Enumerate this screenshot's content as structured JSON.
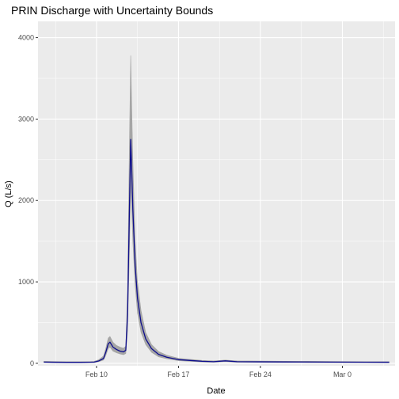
{
  "chart_data": {
    "type": "line",
    "title": "PRIN Discharge with Uncertainty Bounds",
    "xlabel": "Date",
    "ylabel": "Q (L/s)",
    "x_range_days_since_feb1": [
      5.0,
      35.5
    ],
    "ylim": [
      -30,
      4200
    ],
    "x_ticks": [
      {
        "label": "Feb 10",
        "day": 10
      },
      {
        "label": "Feb 17",
        "day": 17
      },
      {
        "label": "Feb 24",
        "day": 24
      },
      {
        "label": "Mar 0",
        "day": 31
      }
    ],
    "y_ticks": [
      0,
      1000,
      2000,
      3000,
      4000
    ],
    "grid": true,
    "colors": {
      "panel": "#ebebeb",
      "grid": "#ffffff",
      "series_line": "#0d0d8c",
      "uncertainty_band": "#a6a6a6"
    },
    "series": [
      {
        "kind": "median_discharge",
        "points": [
          [
            5.5,
            15
          ],
          [
            6.5,
            13
          ],
          [
            7.5,
            12
          ],
          [
            8.5,
            12
          ],
          [
            9.5,
            14
          ],
          [
            9.8,
            15
          ],
          [
            10.2,
            30
          ],
          [
            10.6,
            60
          ],
          [
            10.8,
            140
          ],
          [
            11.0,
            240
          ],
          [
            11.15,
            260
          ],
          [
            11.4,
            200
          ],
          [
            11.7,
            170
          ],
          [
            12.0,
            150
          ],
          [
            12.3,
            140
          ],
          [
            12.5,
            160
          ],
          [
            12.65,
            600
          ],
          [
            12.8,
            1800
          ],
          [
            12.92,
            2750
          ],
          [
            13.0,
            2400
          ],
          [
            13.1,
            1900
          ],
          [
            13.3,
            1200
          ],
          [
            13.5,
            800
          ],
          [
            13.8,
            500
          ],
          [
            14.2,
            300
          ],
          [
            14.7,
            180
          ],
          [
            15.3,
            110
          ],
          [
            16.0,
            75
          ],
          [
            17.0,
            45
          ],
          [
            18.0,
            35
          ],
          [
            19.0,
            25
          ],
          [
            20.0,
            20
          ],
          [
            21.0,
            30
          ],
          [
            22.0,
            20
          ],
          [
            24.0,
            18
          ],
          [
            26.0,
            17
          ],
          [
            28.0,
            16
          ],
          [
            30.0,
            15
          ],
          [
            33.0,
            14
          ],
          [
            35.0,
            13
          ]
        ],
        "uncertainty_upper": [
          [
            5.5,
            25
          ],
          [
            6.5,
            22
          ],
          [
            7.5,
            20
          ],
          [
            8.5,
            20
          ],
          [
            9.5,
            22
          ],
          [
            9.8,
            24
          ],
          [
            10.2,
            45
          ],
          [
            10.6,
            90
          ],
          [
            10.8,
            190
          ],
          [
            11.0,
            310
          ],
          [
            11.15,
            330
          ],
          [
            11.4,
            260
          ],
          [
            11.7,
            220
          ],
          [
            12.0,
            200
          ],
          [
            12.3,
            185
          ],
          [
            12.5,
            210
          ],
          [
            12.65,
            900
          ],
          [
            12.8,
            2600
          ],
          [
            12.92,
            3780
          ],
          [
            13.0,
            3200
          ],
          [
            13.1,
            2500
          ],
          [
            13.3,
            1500
          ],
          [
            13.5,
            1000
          ],
          [
            13.8,
            650
          ],
          [
            14.2,
            380
          ],
          [
            14.7,
            230
          ],
          [
            15.3,
            145
          ],
          [
            16.0,
            100
          ],
          [
            17.0,
            62
          ],
          [
            18.0,
            48
          ],
          [
            19.0,
            36
          ],
          [
            20.0,
            30
          ],
          [
            21.0,
            40
          ],
          [
            22.0,
            30
          ],
          [
            24.0,
            28
          ],
          [
            26.0,
            26
          ],
          [
            28.0,
            25
          ],
          [
            30.0,
            23
          ],
          [
            33.0,
            21
          ],
          [
            35.0,
            20
          ]
        ],
        "uncertainty_lower": [
          [
            5.5,
            10
          ],
          [
            6.5,
            8
          ],
          [
            7.5,
            7
          ],
          [
            8.5,
            7
          ],
          [
            9.5,
            9
          ],
          [
            9.8,
            10
          ],
          [
            10.2,
            20
          ],
          [
            10.6,
            40
          ],
          [
            10.8,
            100
          ],
          [
            11.0,
            180
          ],
          [
            11.15,
            200
          ],
          [
            11.4,
            150
          ],
          [
            11.7,
            130
          ],
          [
            12.0,
            115
          ],
          [
            12.3,
            105
          ],
          [
            12.5,
            120
          ],
          [
            12.65,
            400
          ],
          [
            12.8,
            1300
          ],
          [
            12.92,
            2200
          ],
          [
            13.0,
            1900
          ],
          [
            13.1,
            1500
          ],
          [
            13.3,
            950
          ],
          [
            13.5,
            620
          ],
          [
            13.8,
            380
          ],
          [
            14.2,
            230
          ],
          [
            14.7,
            135
          ],
          [
            15.3,
            80
          ],
          [
            16.0,
            55
          ],
          [
            17.0,
            32
          ],
          [
            18.0,
            24
          ],
          [
            19.0,
            17
          ],
          [
            20.0,
            13
          ],
          [
            21.0,
            22
          ],
          [
            22.0,
            13
          ],
          [
            24.0,
            12
          ],
          [
            26.0,
            11
          ],
          [
            28.0,
            10
          ],
          [
            30.0,
            10
          ],
          [
            33.0,
            9
          ],
          [
            35.0,
            8
          ]
        ]
      }
    ]
  }
}
